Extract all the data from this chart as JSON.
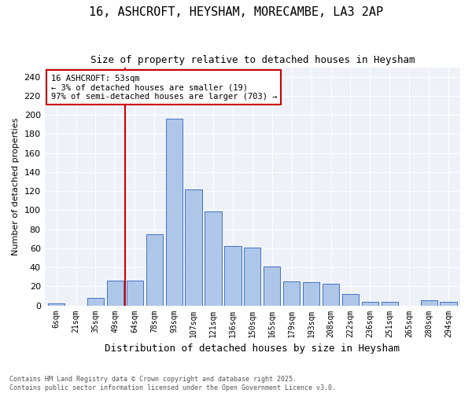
{
  "title": "16, ASHCROFT, HEYSHAM, MORECAMBE, LA3 2AP",
  "subtitle": "Size of property relative to detached houses in Heysham",
  "xlabel": "Distribution of detached houses by size in Heysham",
  "ylabel": "Number of detached properties",
  "footer": "Contains HM Land Registry data © Crown copyright and database right 2025.\nContains public sector information licensed under the Open Government Licence v3.0.",
  "annotation_title": "16 ASHCROFT: 53sqm",
  "annotation_line1": "← 3% of detached houses are smaller (19)",
  "annotation_line2": "97% of semi-detached houses are larger (703) →",
  "bar_color": "#aec6e8",
  "bar_edge_color": "#4472c4",
  "ref_line_color": "#cc0000",
  "annotation_box_color": "#cc0000",
  "categories": [
    "6sqm",
    "21sqm",
    "35sqm",
    "49sqm",
    "64sqm",
    "78sqm",
    "93sqm",
    "107sqm",
    "121sqm",
    "136sqm",
    "150sqm",
    "165sqm",
    "179sqm",
    "193sqm",
    "208sqm",
    "222sqm",
    "236sqm",
    "251sqm",
    "265sqm",
    "280sqm",
    "294sqm"
  ],
  "values": [
    2,
    0,
    8,
    26,
    26,
    75,
    196,
    122,
    99,
    62,
    61,
    41,
    25,
    24,
    23,
    12,
    4,
    4,
    0,
    5,
    4
  ],
  "ylim": [
    0,
    250
  ],
  "yticks": [
    0,
    20,
    40,
    60,
    80,
    100,
    120,
    140,
    160,
    180,
    200,
    220,
    240
  ],
  "ref_line_x": 3.5,
  "figsize": [
    6.0,
    5.0
  ],
  "dpi": 100
}
